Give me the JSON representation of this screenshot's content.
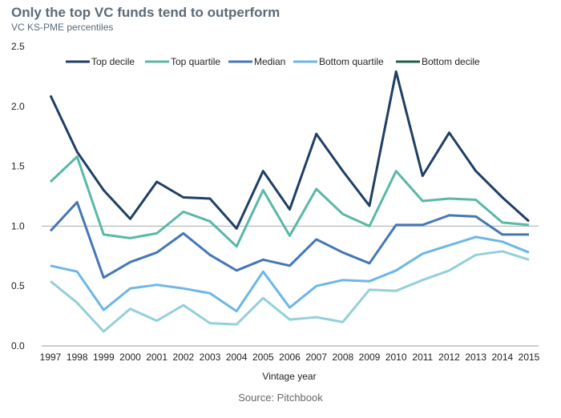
{
  "title": "Only the top VC funds tend to outperform",
  "subtitle": "VC KS-PME percentiles",
  "source": "Source: Pitchbook",
  "chart_data": {
    "type": "line",
    "xlabel": "Vintage year",
    "ylabel": "",
    "ylim": [
      0,
      2.5
    ],
    "yticks": [
      "0.0",
      "0.5",
      "1.0",
      "1.5",
      "2.0",
      "2.5"
    ],
    "reference_line": 1.0,
    "categories": [
      "1997",
      "1998",
      "1999",
      "2000",
      "2001",
      "2002",
      "2003",
      "2004",
      "2005",
      "2006",
      "2007",
      "2008",
      "2009",
      "2010",
      "2011",
      "2012",
      "2013",
      "2014",
      "2015"
    ],
    "series": [
      {
        "name": "Top decile",
        "color": "#1f3f66",
        "values": [
          2.09,
          1.62,
          1.3,
          1.06,
          1.37,
          1.24,
          1.23,
          0.98,
          1.46,
          1.14,
          1.77,
          1.46,
          1.17,
          2.29,
          1.42,
          1.78,
          1.46,
          1.24,
          1.04
        ]
      },
      {
        "name": "Top quartile",
        "color": "#5ab8a6",
        "values": [
          1.37,
          1.58,
          0.93,
          0.9,
          0.94,
          1.12,
          1.04,
          0.83,
          1.3,
          0.92,
          1.31,
          1.1,
          1.0,
          1.46,
          1.21,
          1.23,
          1.22,
          1.03,
          1.01
        ]
      },
      {
        "name": "Median",
        "color": "#4477b6",
        "values": [
          0.96,
          1.2,
          0.57,
          0.7,
          0.78,
          0.94,
          0.76,
          0.63,
          0.72,
          0.67,
          0.89,
          0.78,
          0.69,
          1.01,
          1.01,
          1.09,
          1.08,
          0.93,
          0.93
        ]
      },
      {
        "name": "Bottom quartile",
        "color": "#6cb7e6",
        "values": [
          0.67,
          0.62,
          0.3,
          0.48,
          0.51,
          0.48,
          0.44,
          0.29,
          0.62,
          0.32,
          0.5,
          0.55,
          0.54,
          0.63,
          0.77,
          0.84,
          0.91,
          0.87,
          0.78
        ]
      },
      {
        "name": "Bottom decile",
        "color": "#94d0da",
        "legend_color": "#255c4d",
        "values": [
          0.54,
          0.36,
          0.12,
          0.31,
          0.21,
          0.34,
          0.19,
          0.18,
          0.4,
          0.22,
          0.24,
          0.2,
          0.47,
          0.46,
          0.55,
          0.63,
          0.76,
          0.79,
          0.72
        ]
      }
    ]
  }
}
